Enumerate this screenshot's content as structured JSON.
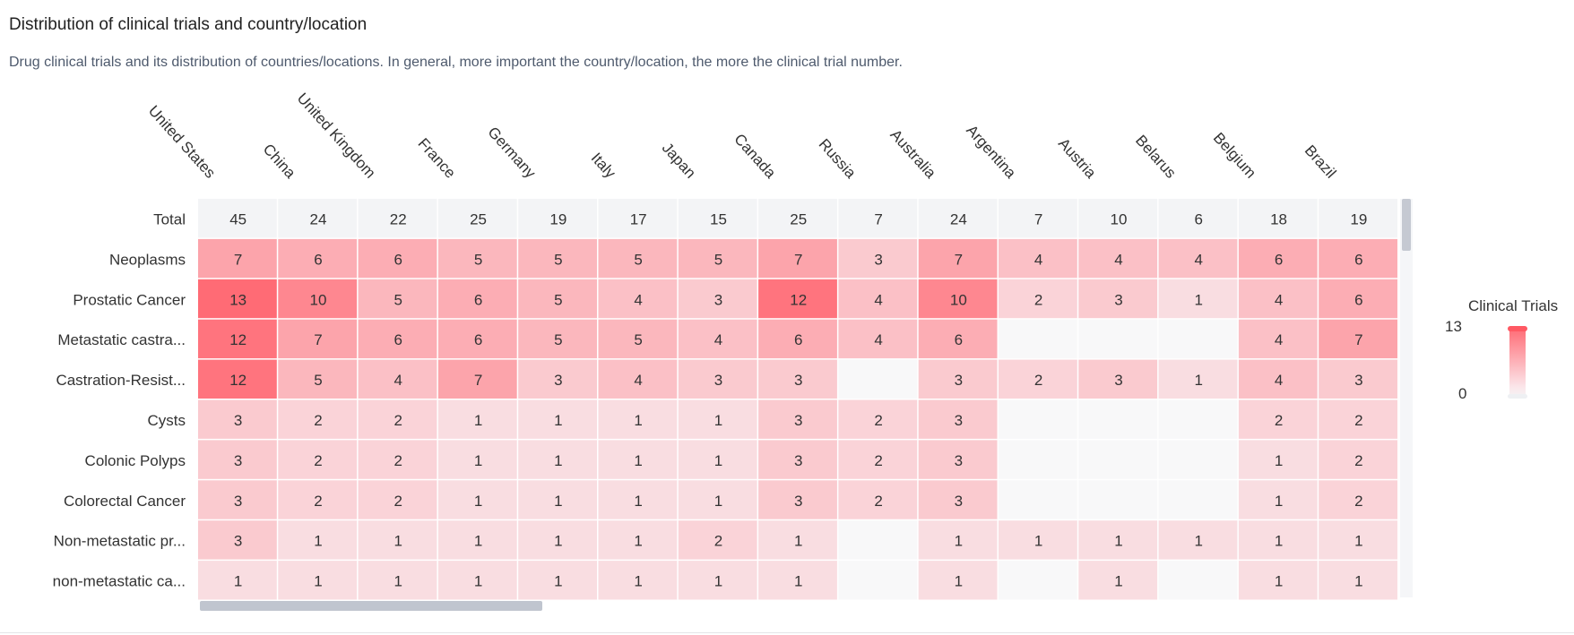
{
  "header": {
    "title": "Distribution of clinical trials and country/location",
    "subtitle": "Drug clinical trials and its distribution of countries/locations. In general, more important the country/location, the more the clinical trial number."
  },
  "legend": {
    "title": "Clinical Trials",
    "max_label": "13",
    "min_label": "0",
    "color_max": "#ff6b75",
    "color_min": "#f4f4f5"
  },
  "colors": {
    "total_row_bg": "#f3f4f6",
    "empty_cell_bg": "#f8f8f9",
    "high": "#ff6b75",
    "low": "#f9e6ea"
  },
  "chart_data": {
    "type": "heatmap",
    "title": "Distribution of clinical trials and country/location",
    "x_categories": [
      "United States",
      "China",
      "United Kingdom",
      "France",
      "Germany",
      "Italy",
      "Japan",
      "Canada",
      "Russia",
      "Australia",
      "Argentina",
      "Austria",
      "Belarus",
      "Belgium",
      "Brazil"
    ],
    "total_label": "Total",
    "totals": [
      45,
      24,
      22,
      25,
      19,
      17,
      15,
      25,
      7,
      24,
      7,
      10,
      6,
      18,
      19
    ],
    "y_categories": [
      "Neoplasms",
      "Prostatic Cancer",
      "Metastatic castra...",
      "Castration-Resist...",
      "Cysts",
      "Colonic Polyps",
      "Colorectal Cancer",
      "Non-metastatic pr...",
      "non-metastatic ca..."
    ],
    "values": [
      [
        7,
        6,
        6,
        5,
        5,
        5,
        5,
        7,
        3,
        7,
        4,
        4,
        4,
        6,
        6
      ],
      [
        13,
        10,
        5,
        6,
        5,
        4,
        3,
        12,
        4,
        10,
        2,
        3,
        1,
        4,
        6
      ],
      [
        12,
        7,
        6,
        6,
        5,
        5,
        4,
        6,
        4,
        6,
        null,
        null,
        null,
        4,
        7
      ],
      [
        12,
        5,
        4,
        7,
        3,
        4,
        3,
        3,
        null,
        3,
        2,
        3,
        1,
        4,
        3
      ],
      [
        3,
        2,
        2,
        1,
        1,
        1,
        1,
        3,
        2,
        3,
        null,
        null,
        null,
        2,
        2
      ],
      [
        3,
        2,
        2,
        1,
        1,
        1,
        1,
        3,
        2,
        3,
        null,
        null,
        null,
        1,
        2
      ],
      [
        3,
        2,
        2,
        1,
        1,
        1,
        1,
        3,
        2,
        3,
        null,
        null,
        null,
        1,
        2
      ],
      [
        3,
        1,
        1,
        1,
        1,
        1,
        2,
        1,
        null,
        1,
        1,
        1,
        1,
        1,
        1
      ],
      [
        1,
        1,
        1,
        1,
        1,
        1,
        1,
        1,
        null,
        1,
        null,
        1,
        null,
        1,
        1
      ]
    ],
    "color_range": [
      0,
      13
    ]
  }
}
